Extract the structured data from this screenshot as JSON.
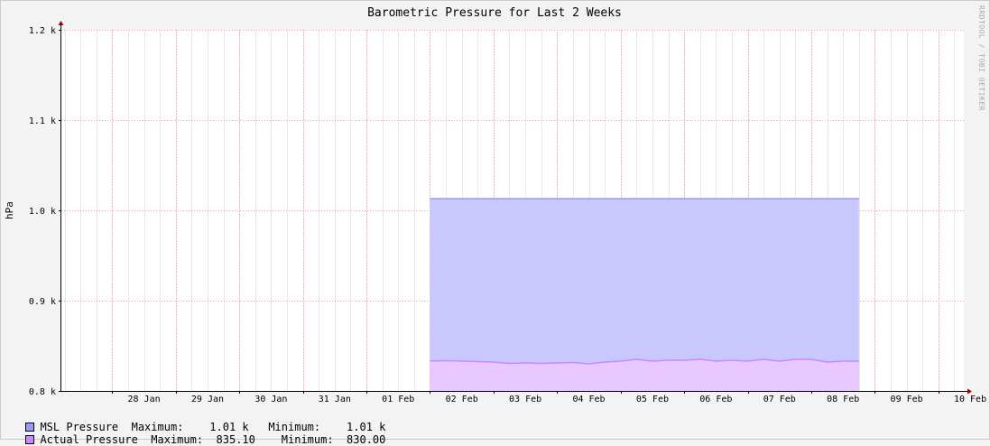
{
  "chart_data": {
    "type": "area",
    "title": "Barometric Pressure for Last 2 Weeks",
    "ylabel": "hPa",
    "xlabel": "",
    "ylim": [
      800,
      1200
    ],
    "y_ticks": [
      {
        "value": 800,
        "label": "0.8 k"
      },
      {
        "value": 900,
        "label": "0.9 k"
      },
      {
        "value": 1000,
        "label": "1.0 k"
      },
      {
        "value": 1100,
        "label": "1.1 k"
      },
      {
        "value": 1200,
        "label": "1.2 k"
      }
    ],
    "x_range_days": [
      -0.8,
      13.4
    ],
    "x_ticks": [
      {
        "day": 0.0,
        "label": "28 Jan"
      },
      {
        "day": 1.0,
        "label": "29 Jan"
      },
      {
        "day": 2.0,
        "label": "30 Jan"
      },
      {
        "day": 3.0,
        "label": "31 Jan"
      },
      {
        "day": 4.0,
        "label": "01 Feb"
      },
      {
        "day": 5.0,
        "label": "02 Feb"
      },
      {
        "day": 6.0,
        "label": "03 Feb"
      },
      {
        "day": 7.0,
        "label": "04 Feb"
      },
      {
        "day": 8.0,
        "label": "05 Feb"
      },
      {
        "day": 9.0,
        "label": "06 Feb"
      },
      {
        "day": 10.0,
        "label": "07 Feb"
      },
      {
        "day": 11.0,
        "label": "08 Feb"
      },
      {
        "day": 12.0,
        "label": "09 Feb"
      },
      {
        "day": 13.0,
        "label": "10 Feb"
      }
    ],
    "grid": true,
    "series": [
      {
        "name": "MSL Pressure",
        "color": "#9999ff",
        "fill": "#c8c8ff",
        "x": [
          5.0,
          11.75
        ],
        "values": [
          1013,
          1013
        ]
      },
      {
        "name": "Actual Pressure",
        "color": "#cc88ff",
        "fill": "#e8c8ff",
        "x": [
          5.0,
          5.25,
          5.5,
          5.75,
          6.0,
          6.25,
          6.5,
          6.75,
          7.0,
          7.25,
          7.5,
          7.75,
          8.0,
          8.25,
          8.5,
          8.75,
          9.0,
          9.25,
          9.5,
          9.75,
          10.0,
          10.25,
          10.5,
          10.75,
          11.0,
          11.25,
          11.5,
          11.75
        ],
        "values": [
          833,
          833.5,
          833,
          832.5,
          832,
          830.5,
          831,
          830.5,
          831,
          831.5,
          830,
          832,
          833,
          835,
          833,
          834,
          834,
          835,
          833,
          834,
          833,
          835,
          833,
          835,
          835,
          832,
          833,
          833
        ]
      }
    ],
    "legend": [
      {
        "label": "MSL Pressure",
        "stats": "Maximum:    1.01 k   Minimum:    1.01 k",
        "color": "#9999ff"
      },
      {
        "label": "Actual Pressure",
        "stats": "Maximum:  835.10    Minimum:  830.00",
        "color": "#cc88ff"
      }
    ]
  },
  "watermark": "RRDTOOL / TOBI OETIKER"
}
